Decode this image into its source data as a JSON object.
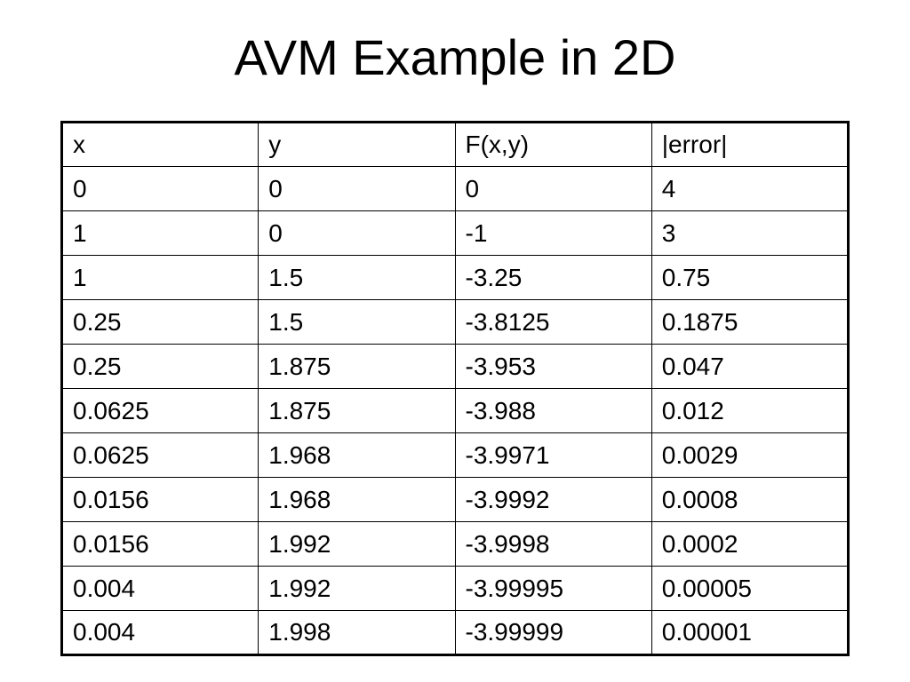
{
  "header": {
    "title": "AVM Example in 2D"
  },
  "table": {
    "columns": [
      "x",
      "y",
      "F(x,y)",
      "|error|"
    ],
    "rows": [
      [
        "0",
        "0",
        "0",
        "4"
      ],
      [
        "1",
        "0",
        "-1",
        "3"
      ],
      [
        "1",
        "1.5",
        "-3.25",
        "0.75"
      ],
      [
        "0.25",
        "1.5",
        "-3.8125",
        "0.1875"
      ],
      [
        "0.25",
        "1.875",
        "-3.953",
        "0.047"
      ],
      [
        "0.0625",
        "1.875",
        "-3.988",
        "0.012"
      ],
      [
        "0.0625",
        "1.968",
        "-3.9971",
        "0.0029"
      ],
      [
        "0.0156",
        "1.968",
        "-3.9992",
        "0.0008"
      ],
      [
        "0.0156",
        "1.992",
        "-3.9998",
        "0.0002"
      ],
      [
        "0.004",
        "1.992",
        "-3.99995",
        "0.00005"
      ],
      [
        "0.004",
        "1.998",
        "-3.99999",
        "0.00001"
      ]
    ]
  }
}
